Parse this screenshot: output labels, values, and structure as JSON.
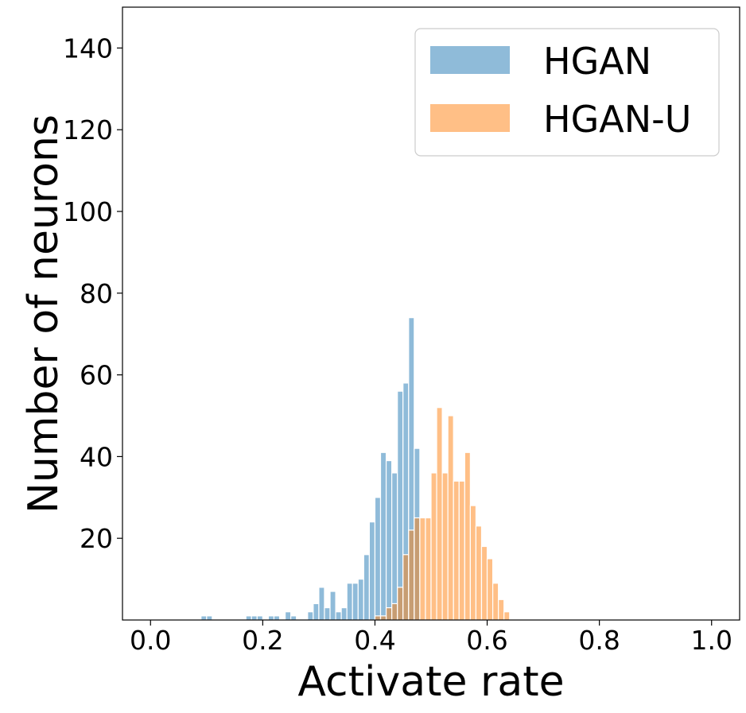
{
  "chart_data": {
    "type": "bar",
    "title": "",
    "xlabel": "Activate rate",
    "ylabel": "Number of neurons",
    "xlim": [
      -0.05,
      1.05
    ],
    "ylim": [
      0,
      150
    ],
    "xticks": [
      0.0,
      0.2,
      0.4,
      0.6,
      0.8,
      1.0
    ],
    "xtick_labels": [
      "0.0",
      "0.2",
      "0.4",
      "0.6",
      "0.8",
      "1.0"
    ],
    "yticks": [
      20,
      40,
      60,
      80,
      100,
      120,
      140
    ],
    "ytick_labels": [
      "20",
      "40",
      "60",
      "80",
      "100",
      "120",
      "140"
    ],
    "grid": false,
    "legend_position": "top-right",
    "bin_edges_start": 0.0,
    "bin_width": 0.01,
    "series": [
      {
        "name": "HGAN",
        "color": "#1f77b4",
        "alpha": 0.5,
        "values": [
          0,
          0,
          0,
          0,
          0,
          0,
          0,
          0,
          0,
          1,
          1,
          0,
          0,
          0,
          0,
          0,
          0,
          1,
          1,
          1,
          0,
          1,
          1,
          0,
          2,
          1,
          0,
          0,
          2,
          4,
          8,
          3,
          7,
          2,
          3,
          9,
          9,
          10,
          16,
          24,
          30,
          41,
          39,
          36,
          56,
          58,
          74,
          42,
          0,
          0,
          0,
          0,
          0,
          0,
          0,
          0,
          0,
          0,
          0,
          0,
          0,
          0,
          0,
          0,
          0,
          0,
          0,
          0,
          0,
          0,
          0,
          0,
          0,
          0,
          0,
          0,
          0,
          0,
          0,
          0,
          0,
          0,
          0,
          0,
          0,
          0,
          0,
          0,
          0,
          0,
          0,
          0,
          0,
          0,
          0,
          0,
          0,
          0,
          0,
          0
        ]
      },
      {
        "name": "HGAN-U",
        "color": "#ff7f0e",
        "alpha": 0.5,
        "values": [
          0,
          0,
          0,
          0,
          0,
          0,
          0,
          0,
          0,
          0,
          0,
          0,
          0,
          0,
          0,
          0,
          0,
          0,
          0,
          0,
          0,
          0,
          0,
          0,
          0,
          0,
          0,
          0,
          0,
          0,
          0,
          0,
          0,
          0,
          0,
          0,
          0,
          0,
          0,
          0,
          1,
          1,
          3,
          4,
          8,
          16,
          22,
          25,
          25,
          25,
          36,
          52,
          36,
          50,
          34,
          34,
          41,
          28,
          23,
          18,
          15,
          9,
          5,
          2,
          0,
          0,
          0,
          0,
          0,
          0,
          0,
          0,
          0,
          0,
          0,
          0,
          0,
          0,
          0,
          0,
          0,
          0,
          0,
          0,
          0,
          0,
          0,
          0,
          0,
          0,
          0,
          0,
          0,
          0,
          0,
          0,
          0,
          0,
          0,
          0
        ]
      }
    ]
  }
}
